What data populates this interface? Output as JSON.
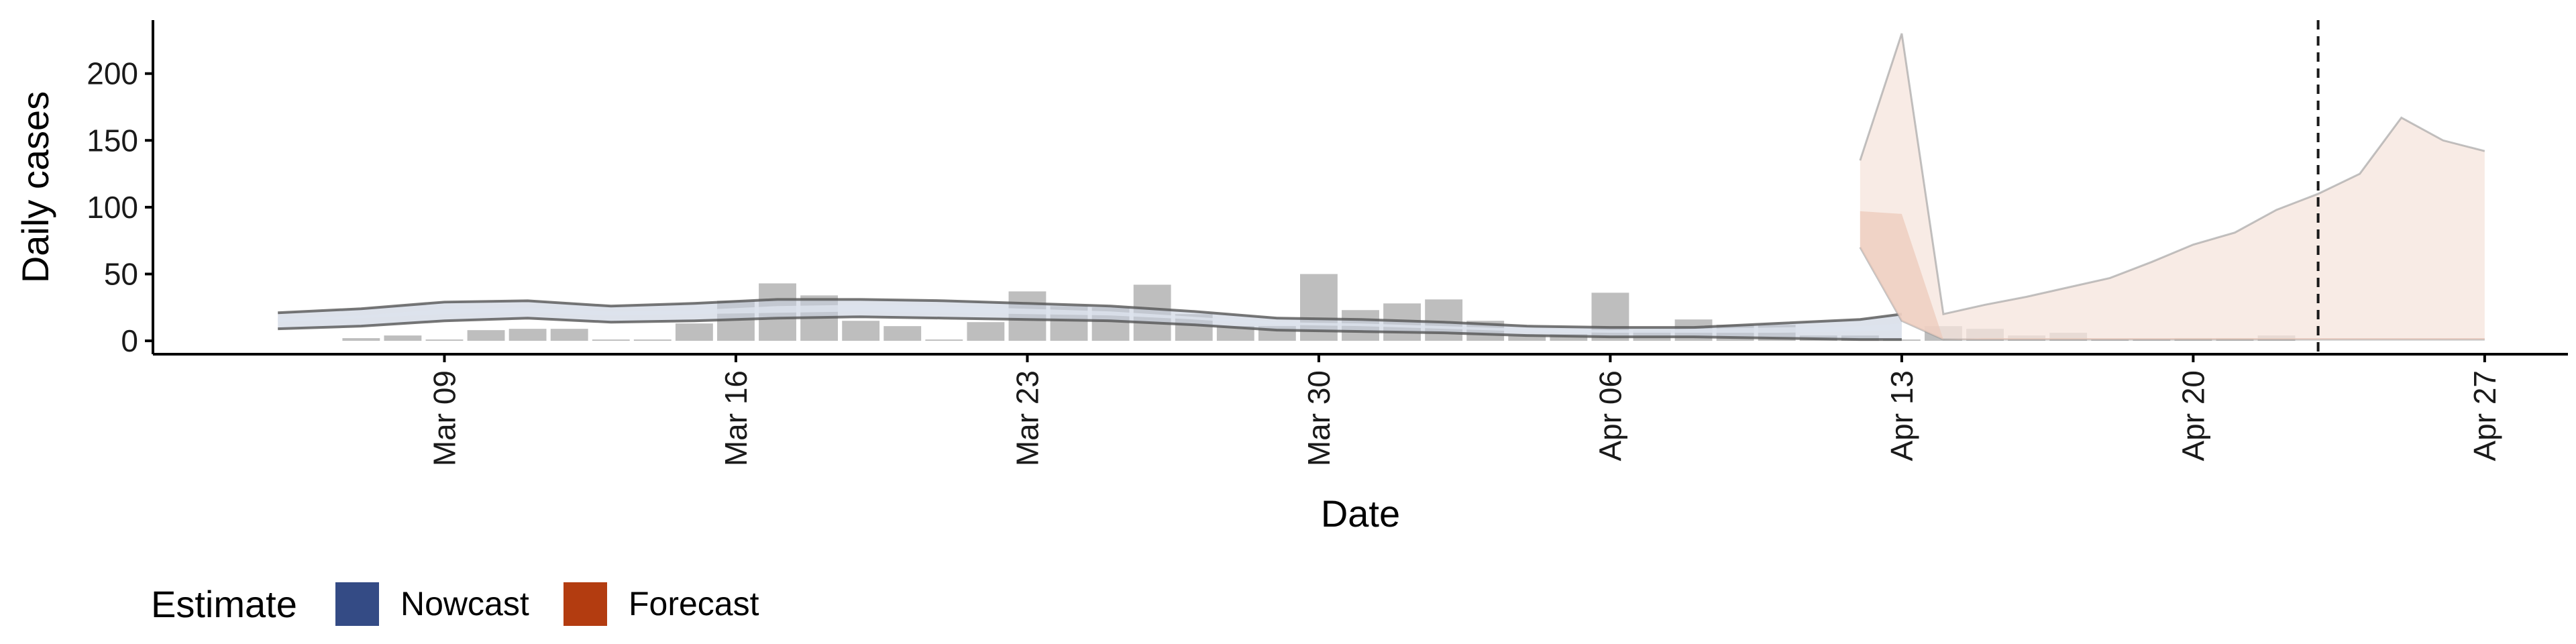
{
  "chart_data": {
    "type": "bar",
    "xlabel": "Date",
    "ylabel": "Daily cases",
    "x_tick_labels": [
      "Mar 09",
      "Mar 16",
      "Mar 23",
      "Mar 30",
      "Apr 06",
      "Apr 13",
      "Apr 20",
      "Apr 27"
    ],
    "y_ticks": [
      0,
      50,
      100,
      150,
      200
    ],
    "ylim": [
      -10,
      240
    ],
    "xlim": [
      "2020-03-02",
      "2020-04-29"
    ],
    "grid": false,
    "vertical_line": {
      "date": "2020-04-23",
      "style": "dashed"
    },
    "observed_cases": {
      "dates": [
        "2020-03-07",
        "2020-03-08",
        "2020-03-09",
        "2020-03-10",
        "2020-03-11",
        "2020-03-12",
        "2020-03-13",
        "2020-03-14",
        "2020-03-15",
        "2020-03-16",
        "2020-03-17",
        "2020-03-18",
        "2020-03-19",
        "2020-03-20",
        "2020-03-21",
        "2020-03-22",
        "2020-03-23",
        "2020-03-24",
        "2020-03-25",
        "2020-03-26",
        "2020-03-27",
        "2020-03-28",
        "2020-03-29",
        "2020-03-30",
        "2020-03-31",
        "2020-04-01",
        "2020-04-02",
        "2020-04-03",
        "2020-04-04",
        "2020-04-05",
        "2020-04-06",
        "2020-04-07",
        "2020-04-08",
        "2020-04-09",
        "2020-04-10",
        "2020-04-11",
        "2020-04-12",
        "2020-04-13",
        "2020-04-14",
        "2020-04-15",
        "2020-04-16",
        "2020-04-17",
        "2020-04-18",
        "2020-04-19",
        "2020-04-20",
        "2020-04-21",
        "2020-04-22"
      ],
      "values": [
        2,
        4,
        1,
        8,
        9,
        9,
        1,
        1,
        13,
        30,
        43,
        34,
        15,
        11,
        1,
        14,
        37,
        26,
        25,
        42,
        20,
        11,
        11,
        50,
        23,
        28,
        31,
        15,
        4,
        5,
        36,
        8,
        16,
        12,
        12,
        4,
        4,
        1,
        11,
        9,
        4,
        6,
        1,
        1,
        2,
        2,
        4
      ]
    },
    "series": [
      {
        "name": "Nowcast",
        "dates": [
          "2020-03-05",
          "2020-03-07",
          "2020-03-09",
          "2020-03-11",
          "2020-03-13",
          "2020-03-15",
          "2020-03-17",
          "2020-03-19",
          "2020-03-21",
          "2020-03-23",
          "2020-03-25",
          "2020-03-27",
          "2020-03-29",
          "2020-03-31",
          "2020-04-02",
          "2020-04-04",
          "2020-04-06",
          "2020-04-08",
          "2020-04-10",
          "2020-04-12",
          "2020-04-13"
        ],
        "lower_90": [
          9,
          11,
          15,
          17,
          14,
          15,
          17,
          18,
          17,
          16,
          15,
          12,
          8,
          7,
          6,
          4,
          3,
          3,
          2,
          1,
          1
        ],
        "upper_90": [
          21,
          24,
          29,
          30,
          26,
          28,
          31,
          31,
          30,
          28,
          26,
          22,
          17,
          16,
          14,
          11,
          10,
          10,
          13,
          16,
          20
        ],
        "lower_50": [
          14,
          17,
          20,
          21,
          19,
          20,
          21,
          22,
          21,
          20,
          19,
          16,
          12,
          11,
          9,
          7,
          6,
          6,
          6,
          7,
          8
        ],
        "upper_50": [
          17,
          19,
          24,
          25,
          22,
          23,
          26,
          27,
          26,
          24,
          22,
          18,
          14,
          13,
          11,
          9,
          8,
          9,
          10,
          11,
          13
        ]
      },
      {
        "name": "Forecast",
        "dates": [
          "2020-04-12",
          "2020-04-13",
          "2020-04-14",
          "2020-04-15",
          "2020-04-16",
          "2020-04-17",
          "2020-04-18",
          "2020-04-19",
          "2020-04-20",
          "2020-04-21",
          "2020-04-22",
          "2020-04-23",
          "2020-04-24",
          "2020-04-25",
          "2020-04-26",
          "2020-04-27"
        ],
        "lower_90": [
          70,
          15,
          1,
          1,
          1,
          1,
          1,
          1,
          1,
          1,
          1,
          1,
          1,
          1,
          1,
          1
        ],
        "upper_90": [
          135,
          230,
          20,
          27,
          33,
          40,
          47,
          59,
          72,
          81,
          98,
          110,
          125,
          167,
          150,
          142
        ],
        "lower_50": [
          70,
          15,
          1,
          1,
          1,
          1,
          1,
          1,
          1,
          1,
          1,
          1,
          1,
          1,
          1,
          1
        ],
        "upper_50": [
          97,
          95,
          1,
          2,
          2,
          2,
          2,
          2,
          2,
          2,
          2,
          2,
          2,
          2,
          2,
          2
        ]
      }
    ],
    "legend": {
      "title": "Estimate",
      "placement": "bottom-left",
      "items": [
        {
          "label": "Nowcast",
          "color": "#344b85"
        },
        {
          "label": "Forecast",
          "color": "#b33c10"
        }
      ]
    },
    "colors": {
      "bars": "#bebebe",
      "nowcast_band": "#c7cfde",
      "nowcast_inner": "#dde3ee",
      "forecast_band": "#f5e4dc",
      "forecast_inner": "#ecc9b9",
      "band_edge": "#666666"
    }
  }
}
